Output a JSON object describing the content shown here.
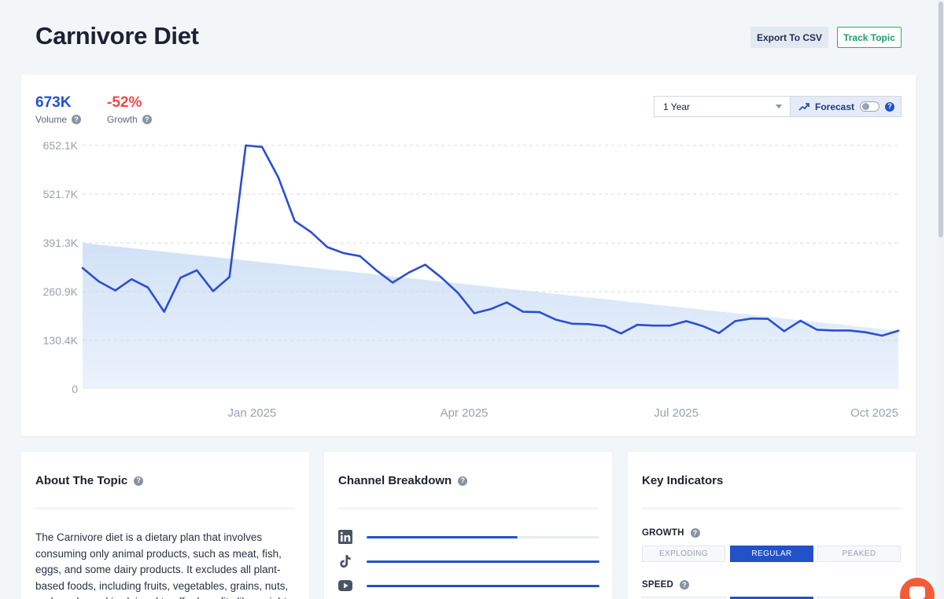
{
  "header": {
    "title": "Carnivore Diet",
    "export_label": "Export To CSV",
    "track_label": "Track Topic"
  },
  "metrics": {
    "volume": {
      "value": "673K",
      "label": "Volume",
      "color": "#2352c8"
    },
    "growth": {
      "value": "-52%",
      "label": "Growth",
      "color": "#f04a4a"
    }
  },
  "controls": {
    "period_selected": "1 Year",
    "forecast_label": "Forecast",
    "forecast_on": false
  },
  "chart_data": {
    "type": "line",
    "title": "",
    "xlabel": "",
    "ylabel": "",
    "ylim": [
      0,
      652100
    ],
    "y_ticks": [
      "652.1K",
      "521.7K",
      "391.3K",
      "260.9K",
      "130.4K",
      "0"
    ],
    "x_ticks": [
      "Jan 2025",
      "Apr 2025",
      "Jul 2025",
      "Oct 2025"
    ],
    "x_tick_weeks": [
      10,
      23,
      36,
      50
    ],
    "grid": true,
    "series": [
      {
        "name": "Volume",
        "color": "#2b4fd1",
        "values": [
          324000,
          288000,
          264000,
          294000,
          272000,
          207000,
          298000,
          318000,
          262000,
          300000,
          652000,
          648000,
          566000,
          450000,
          420000,
          380000,
          364000,
          356000,
          318000,
          285000,
          312000,
          333000,
          298000,
          258000,
          203000,
          214000,
          232000,
          207000,
          206000,
          186000,
          175000,
          174000,
          169000,
          149000,
          172000,
          170000,
          170000,
          182000,
          169000,
          150000,
          182000,
          189000,
          188000,
          155000,
          183000,
          159000,
          157000,
          157000,
          152000,
          143000,
          156000
        ]
      },
      {
        "name": "Trend",
        "color": "#dbe8f8",
        "values": [
          391300,
          156000
        ]
      }
    ]
  },
  "about": {
    "title": "About The Topic",
    "text": "The Carnivore diet is a dietary plan that involves consuming only animal products, such as meat, fish, eggs, and some dairy products. It excludes all plant-based foods, including fruits, vegetables, grains, nuts, and seeds, and is claimed to offer benefits like weight"
  },
  "channels": {
    "title": "Channel Breakdown",
    "items": [
      {
        "name": "LinkedIn",
        "icon": "linkedin-icon",
        "share": 0.65
      },
      {
        "name": "TikTok",
        "icon": "tiktok-icon",
        "share": 1.0
      },
      {
        "name": "YouTube",
        "icon": "youtube-icon",
        "share": 1.0
      }
    ]
  },
  "key_indicators": {
    "title": "Key Indicators",
    "growth": {
      "label": "GROWTH",
      "options": [
        "EXPLODING",
        "REGULAR",
        "PEAKED"
      ],
      "selected": 1
    },
    "speed": {
      "label": "SPEED"
    }
  },
  "colors": {
    "accent": "#2352c8",
    "positive": "#1f9e63",
    "negative": "#f04a4a",
    "chat": "#f25c38"
  }
}
